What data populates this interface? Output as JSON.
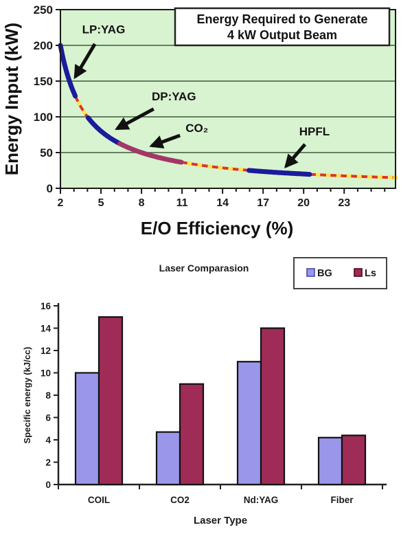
{
  "page": {
    "background": "#ffffff"
  },
  "chart_data": [
    {
      "type": "line",
      "name": "energy-required-curve",
      "title_box_lines": [
        "Energy Required to Generate",
        "4 kW Output Beam"
      ],
      "xlabel": "E/O Efficiency (%)",
      "ylabel": "Energy Input (kW)",
      "xlim": [
        2,
        26.8
      ],
      "ylim": [
        0,
        250
      ],
      "x_major_ticks": [
        2,
        5,
        8,
        11,
        14,
        17,
        20,
        23
      ],
      "y_ticks": [
        0,
        50,
        100,
        150,
        200,
        250
      ],
      "formula": "energy_input_kW = 400 / efficiency_pct",
      "formula_k": 400,
      "plot_bg": "#d8f3cf",
      "grid_color": "#3c5a3c",
      "axis_color": "#1a1a1a",
      "dash_red": "#e23222",
      "dash_yellow": "#ffe74f",
      "grid": true,
      "legend_position": "none",
      "segments": [
        {
          "label": "LP:YAG",
          "from": 2.0,
          "to": 3.1,
          "style": "solid",
          "color": "#1b1b9c"
        },
        {
          "label": "",
          "from": 3.1,
          "to": 4.05,
          "style": "dashed"
        },
        {
          "label": "DP:YAG",
          "from": 4.05,
          "to": 6.4,
          "style": "solid",
          "color": "#1b1b9c"
        },
        {
          "label": "CO₂",
          "from": 6.4,
          "to": 10.95,
          "style": "solid",
          "color": "#a23768"
        },
        {
          "label": "",
          "from": 10.95,
          "to": 15.95,
          "style": "dashed"
        },
        {
          "label": "HPFL",
          "from": 15.95,
          "to": 20.45,
          "style": "solid",
          "color": "#1b1b9c"
        },
        {
          "label": "",
          "from": 20.45,
          "to": 26.8,
          "style": "dashed"
        }
      ],
      "annotations": [
        {
          "text": "LP:YAG",
          "text_at": [
            5.2,
            217
          ],
          "arrow_from": [
            4.55,
            202
          ],
          "arrow_to": [
            3.1,
            156
          ]
        },
        {
          "text": "DP:YAG",
          "text_at": [
            10.4,
            123
          ],
          "arrow_from": [
            8.9,
            111
          ],
          "arrow_to": [
            6.2,
            83.5
          ]
        },
        {
          "text": "CO₂",
          "text_at": [
            12.1,
            79
          ],
          "arrow_from": [
            10.85,
            74
          ],
          "arrow_to": [
            8.76,
            59.5
          ]
        },
        {
          "text": "HPFL",
          "text_at": [
            20.8,
            74
          ],
          "arrow_from": [
            20.1,
            61.5
          ],
          "arrow_to": [
            18.7,
            30.8
          ]
        }
      ]
    },
    {
      "type": "bar",
      "name": "laser-comparison",
      "title": "Laser Comparasion",
      "xlabel": "Laser Type",
      "ylabel": "Specific energy (kJ/cc)",
      "categories": [
        "COIL",
        "CO2",
        "Nd:YAG",
        "Fiber"
      ],
      "series": [
        {
          "name": "BG",
          "color": "#9a96ea",
          "border": "#111111",
          "values": [
            10,
            4.7,
            11,
            4.2
          ]
        },
        {
          "name": "Ls",
          "color": "#9e2c57",
          "border": "#111111",
          "values": [
            15,
            9,
            14,
            4.4
          ]
        }
      ],
      "ylim": [
        0,
        16
      ],
      "y_ticks": [
        0,
        2,
        4,
        6,
        8,
        10,
        12,
        14,
        16
      ],
      "legend_position": "top-right",
      "legend_labels": [
        "BG",
        "Ls"
      ],
      "grid": false,
      "axis_color": "#222222",
      "text_color": "#1a1a1a"
    }
  ]
}
